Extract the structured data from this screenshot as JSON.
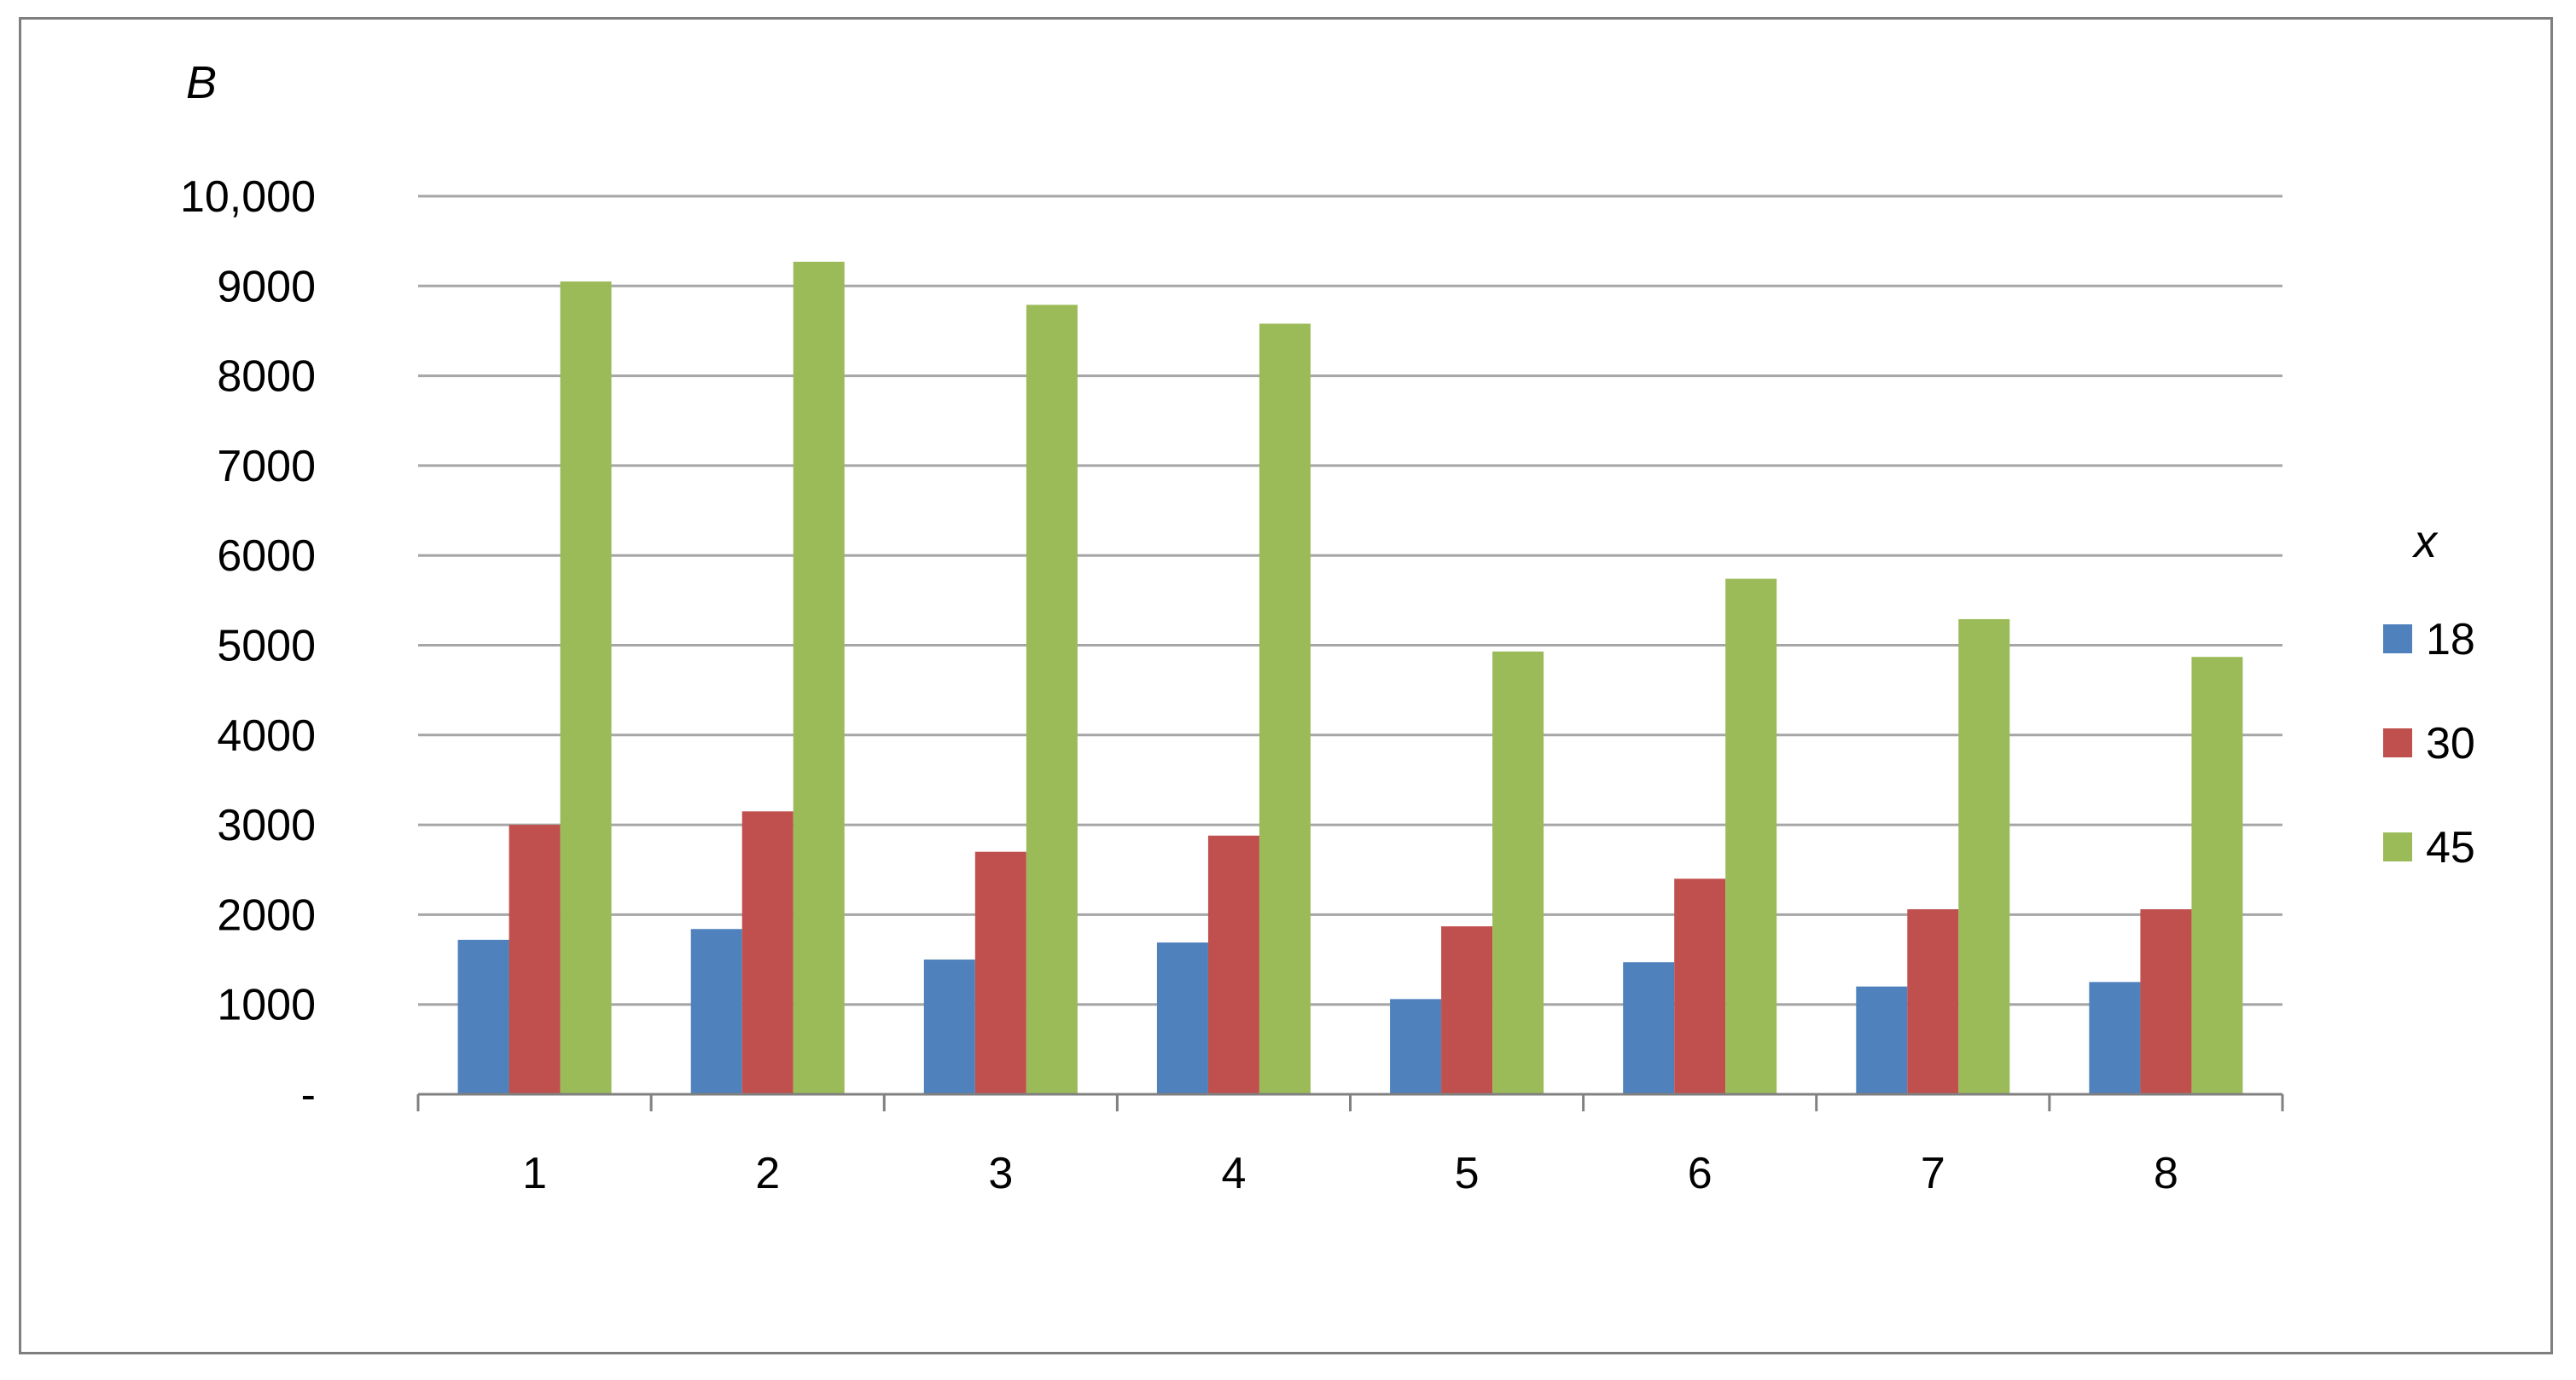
{
  "chart_data": {
    "type": "bar",
    "ylabel": "B",
    "xlabel": "",
    "categories": [
      "1",
      "2",
      "3",
      "4",
      "5",
      "6",
      "7",
      "8"
    ],
    "series": [
      {
        "name": "18",
        "color": "#4f81bd",
        "values": [
          1720,
          1840,
          1500,
          1690,
          1060,
          1470,
          1200,
          1250
        ]
      },
      {
        "name": "30",
        "color": "#c0504d",
        "values": [
          3000,
          3150,
          2700,
          2880,
          1870,
          2400,
          2060,
          2060
        ]
      },
      {
        "name": "45",
        "color": "#9bbb59",
        "values": [
          9050,
          9270,
          8790,
          8580,
          4930,
          5740,
          5290,
          4870
        ]
      }
    ],
    "ylim": [
      0,
      10000
    ],
    "yticks": [
      0,
      1000,
      2000,
      3000,
      4000,
      5000,
      6000,
      7000,
      8000,
      9000,
      10000
    ],
    "ytick_labels": [
      "-",
      "1000",
      "2000",
      "3000",
      "4000",
      "5000",
      "6000",
      "7000",
      "8000",
      "9000",
      "10,000"
    ],
    "grid": true,
    "legend": {
      "title": "x",
      "placement": "right"
    }
  }
}
